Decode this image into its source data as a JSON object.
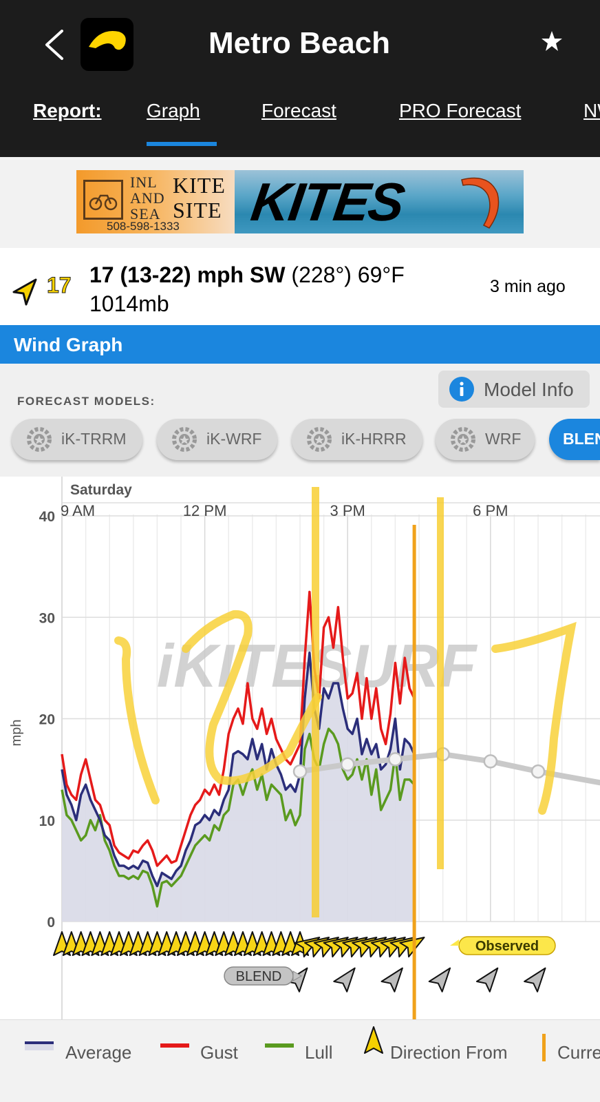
{
  "header": {
    "title": "Metro Beach",
    "back_icon": "chevron-left-icon",
    "favorite_icon": "star-icon"
  },
  "tabs": {
    "label": "Report:",
    "items": [
      {
        "label": "Graph",
        "active": true
      },
      {
        "label": "Forecast",
        "active": false
      },
      {
        "label": "PRO Forecast",
        "active": false
      },
      {
        "label": "NW",
        "active": false
      }
    ]
  },
  "ad": {
    "left_text_lines": [
      "INL",
      "AND",
      "SEA"
    ],
    "brand_lines": [
      "KITE",
      "SITE"
    ],
    "phone": "508-598-1333",
    "headline": "KITES"
  },
  "summary": {
    "speed_badge": "17",
    "main_bold": "17 (13-22) mph SW",
    "main_rest": " (228°) 69°F",
    "pressure": "1014mb",
    "updated": "3 min ago"
  },
  "wind_graph": {
    "title": "Wind Graph",
    "model_info_label": "Model Info",
    "forecast_models_label": "FORECAST MODELS:",
    "models": [
      {
        "label": "iK-TRRM",
        "active": false
      },
      {
        "label": "iK-WRF",
        "active": false
      },
      {
        "label": "iK-HRRR",
        "active": false
      },
      {
        "label": "WRF",
        "active": false
      },
      {
        "label": "BLEND",
        "active": true
      }
    ]
  },
  "chart_data": {
    "type": "line",
    "day_label": "Saturday",
    "x_tick_labels": [
      "9 AM",
      "12 PM",
      "3 PM",
      "6 PM"
    ],
    "x_ticks_hours": [
      9,
      12,
      15,
      18
    ],
    "xlim_hours": [
      9,
      20.3
    ],
    "ylabel": "mph",
    "ylim": [
      0,
      40
    ],
    "y_ticks": [
      0,
      10,
      20,
      30,
      40
    ],
    "watermark": "iKITESURF",
    "current_time_hour": 16.4,
    "x": [
      9.0,
      9.1,
      9.2,
      9.3,
      9.4,
      9.5,
      9.6,
      9.7,
      9.8,
      9.9,
      10.0,
      10.1,
      10.2,
      10.3,
      10.4,
      10.5,
      10.6,
      10.7,
      10.8,
      10.9,
      11.0,
      11.1,
      11.2,
      11.3,
      11.4,
      11.5,
      11.6,
      11.7,
      11.8,
      11.9,
      12.0,
      12.1,
      12.2,
      12.3,
      12.4,
      12.5,
      12.6,
      12.7,
      12.8,
      12.9,
      13.0,
      13.1,
      13.2,
      13.3,
      13.4,
      13.5,
      13.6,
      13.7,
      13.8,
      13.9,
      14.0,
      14.1,
      14.2,
      14.3,
      14.4,
      14.5,
      14.6,
      14.7,
      14.8,
      14.9,
      15.0,
      15.1,
      15.2,
      15.3,
      15.4,
      15.5,
      15.6,
      15.7,
      15.8,
      15.9,
      16.0,
      16.1,
      16.2,
      16.3,
      16.4
    ],
    "series": [
      {
        "name": "Average",
        "color": "#2b2e7a",
        "values": [
          15,
          12.5,
          11.5,
          10,
          12.5,
          13.5,
          12,
          11,
          10,
          8.5,
          8,
          6.5,
          5.5,
          5.5,
          5.2,
          5.5,
          5.2,
          6,
          5.8,
          4.5,
          3.5,
          4.8,
          4.5,
          4.2,
          5,
          5.5,
          7,
          8,
          9.5,
          9.8,
          10.5,
          10,
          11,
          10.5,
          12,
          13,
          16.5,
          16.8,
          16.5,
          16,
          18,
          16,
          17.5,
          15,
          17,
          15.5,
          14.5,
          13,
          13.5,
          12.8,
          14.5,
          22,
          26.5,
          21,
          19,
          23,
          22,
          23.5,
          23.5,
          21,
          19,
          18.5,
          20,
          16.5,
          18,
          16.5,
          17.5,
          15,
          15.5,
          17,
          20,
          15,
          18,
          17.5,
          16.5
        ]
      },
      {
        "name": "Gust",
        "color": "#e51a1a",
        "values": [
          16.5,
          13.5,
          12.5,
          12,
          14.5,
          16,
          14,
          12,
          11.5,
          10,
          9.5,
          7.5,
          6.8,
          6.5,
          6.2,
          7,
          6.8,
          7.5,
          8,
          7,
          5.5,
          6,
          6.5,
          5.8,
          6,
          7.5,
          9,
          10.5,
          11.5,
          12,
          13,
          12.5,
          13.5,
          12.5,
          15,
          18.5,
          20,
          21,
          19.5,
          23.5,
          20,
          19,
          21,
          18.5,
          20,
          18,
          17,
          16,
          15.5,
          16.5,
          17.5,
          26,
          32.5,
          25,
          22,
          29,
          30,
          27,
          31,
          26,
          22,
          22.5,
          24.5,
          20,
          24,
          20,
          23,
          19,
          17.5,
          20.5,
          25.5,
          21.5,
          26,
          23,
          22
        ]
      },
      {
        "name": "Lull",
        "color": "#5a9a1f",
        "values": [
          13,
          10.5,
          10,
          9,
          8,
          8.5,
          10,
          9,
          10.5,
          8,
          7,
          5.5,
          4.5,
          4.5,
          4.2,
          4.5,
          4.2,
          5,
          4.8,
          3.5,
          1.5,
          3.8,
          4,
          3.5,
          4,
          4.5,
          5.5,
          6.5,
          7.5,
          8,
          8.5,
          8,
          9.5,
          9,
          10.5,
          11,
          13.5,
          14,
          12.5,
          14,
          15,
          13,
          14.5,
          12,
          13.5,
          13,
          12.5,
          10,
          11,
          9.5,
          10.5,
          17,
          18.5,
          16,
          15,
          17.5,
          19,
          18.5,
          17.5,
          15,
          14,
          14.5,
          16,
          14,
          16,
          12.5,
          15,
          11,
          12,
          13,
          16.5,
          12,
          14,
          14,
          13.5
        ]
      }
    ],
    "forecast": {
      "name": "BLEND",
      "x": [
        14.0,
        15.0,
        16.0,
        17.0,
        18.0,
        19.0,
        20.3
      ],
      "values": [
        14.8,
        15.5,
        16.0,
        16.5,
        15.8,
        14.8,
        13.7
      ]
    },
    "direction_rows": {
      "observed_label": "Observed",
      "forecast_label": "BLEND"
    },
    "legend": [
      "Average",
      "Gust",
      "Lull",
      "Direction From",
      "Current Time"
    ],
    "colors": {
      "average_fill": "#dadbe8",
      "current_time": "#f0a21b",
      "forecast_line": "#c9c9c9"
    }
  }
}
